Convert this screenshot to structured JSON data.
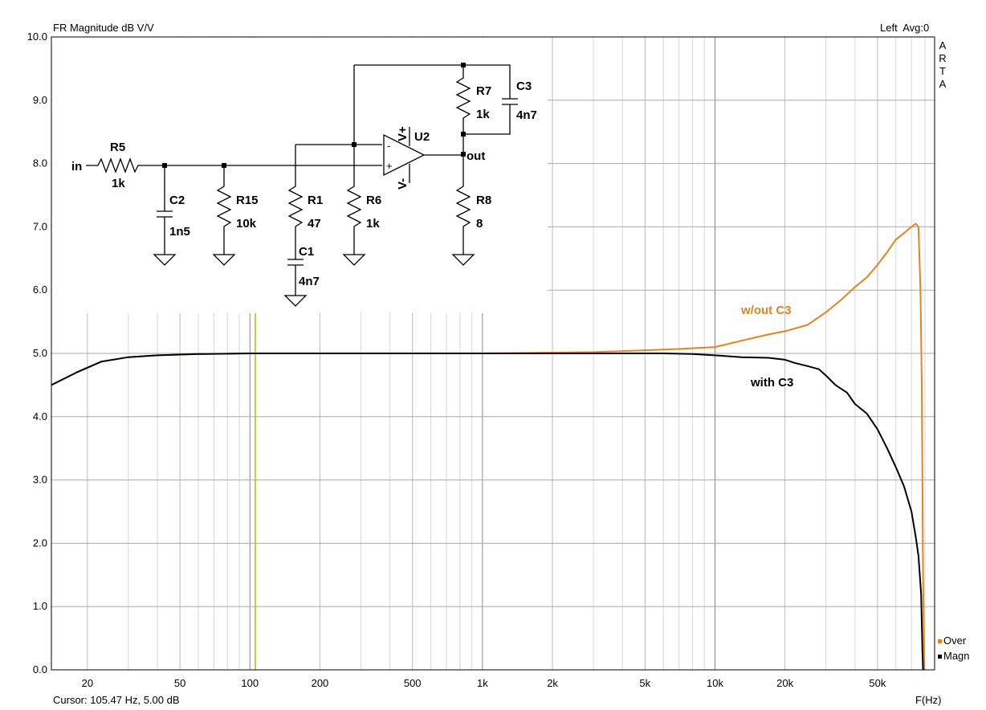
{
  "header": {
    "title": "FR Magnitude dB V/V",
    "channel_info": "Left  Avg:0",
    "side_label": [
      "A",
      "R",
      "T",
      "A"
    ],
    "cursor": "Cursor: 105.47 Hz, 5.00 dB",
    "x_unit": "F(Hz)"
  },
  "chart_data": {
    "type": "line",
    "title": "FR Magnitude dB V/V",
    "xlabel": "F(Hz)",
    "ylabel": "",
    "x_scale": "log",
    "xlim": [
      14,
      88000
    ],
    "ylim": [
      0,
      10
    ],
    "grid": true,
    "x_ticks": [
      {
        "value": 20,
        "label": "20"
      },
      {
        "value": 50,
        "label": "50"
      },
      {
        "value": 100,
        "label": "100"
      },
      {
        "value": 200,
        "label": "200"
      },
      {
        "value": 500,
        "label": "500"
      },
      {
        "value": 1000,
        "label": "1k"
      },
      {
        "value": 2000,
        "label": "2k"
      },
      {
        "value": 5000,
        "label": "5k"
      },
      {
        "value": 10000,
        "label": "10k"
      },
      {
        "value": 20000,
        "label": "20k"
      },
      {
        "value": 50000,
        "label": "50k"
      }
    ],
    "y_ticks": [
      {
        "value": 0,
        "label": "0.0"
      },
      {
        "value": 1,
        "label": "1.0"
      },
      {
        "value": 2,
        "label": "2.0"
      },
      {
        "value": 3,
        "label": "3.0"
      },
      {
        "value": 4,
        "label": "4.0"
      },
      {
        "value": 5,
        "label": "5.0"
      },
      {
        "value": 6,
        "label": "6.0"
      },
      {
        "value": 7,
        "label": "7.0"
      },
      {
        "value": 8,
        "label": "8.0"
      },
      {
        "value": 9,
        "label": "9.0"
      },
      {
        "value": 10,
        "label": "10.0"
      }
    ],
    "cursor_x": 105.47,
    "series": [
      {
        "name": "Magn",
        "annotation": "with C3",
        "color": "#000000",
        "points": [
          [
            14,
            4.5
          ],
          [
            18,
            4.7
          ],
          [
            23,
            4.87
          ],
          [
            30,
            4.94
          ],
          [
            40,
            4.97
          ],
          [
            60,
            4.99
          ],
          [
            100,
            5.0
          ],
          [
            300,
            5.0
          ],
          [
            1000,
            5.0
          ],
          [
            3000,
            5.0
          ],
          [
            6000,
            5.0
          ],
          [
            8000,
            4.99
          ],
          [
            10000,
            4.97
          ],
          [
            13000,
            4.94
          ],
          [
            17000,
            4.93
          ],
          [
            20000,
            4.9
          ],
          [
            22000,
            4.85
          ],
          [
            25000,
            4.8
          ],
          [
            28000,
            4.75
          ],
          [
            30000,
            4.65
          ],
          [
            33000,
            4.5
          ],
          [
            37000,
            4.38
          ],
          [
            40000,
            4.2
          ],
          [
            45000,
            4.05
          ],
          [
            50000,
            3.8
          ],
          [
            55000,
            3.5
          ],
          [
            60000,
            3.2
          ],
          [
            65000,
            2.9
          ],
          [
            70000,
            2.5
          ],
          [
            73000,
            2.1
          ],
          [
            75000,
            1.8
          ],
          [
            77000,
            1.2
          ],
          [
            78000,
            0.3
          ],
          [
            78500,
            0
          ]
        ]
      },
      {
        "name": "Over",
        "annotation": "w/out C3",
        "color": "#e8831c",
        "points": [
          [
            14,
            4.5
          ],
          [
            18,
            4.7
          ],
          [
            23,
            4.87
          ],
          [
            30,
            4.94
          ],
          [
            40,
            4.97
          ],
          [
            60,
            4.99
          ],
          [
            100,
            5.0
          ],
          [
            300,
            5.0
          ],
          [
            1000,
            5.0
          ],
          [
            3000,
            5.02
          ],
          [
            5000,
            5.05
          ],
          [
            7000,
            5.07
          ],
          [
            10000,
            5.1
          ],
          [
            13000,
            5.2
          ],
          [
            17000,
            5.3
          ],
          [
            20000,
            5.35
          ],
          [
            25000,
            5.45
          ],
          [
            30000,
            5.65
          ],
          [
            35000,
            5.85
          ],
          [
            40000,
            6.05
          ],
          [
            45000,
            6.2
          ],
          [
            50000,
            6.4
          ],
          [
            55000,
            6.6
          ],
          [
            60000,
            6.8
          ],
          [
            65000,
            6.9
          ],
          [
            70000,
            7.0
          ],
          [
            73000,
            7.05
          ],
          [
            75000,
            7.0
          ],
          [
            76500,
            6.0
          ],
          [
            77500,
            4.5
          ],
          [
            78500,
            1.5
          ],
          [
            79500,
            0
          ]
        ]
      }
    ]
  },
  "schematic": {
    "labels": {
      "in": "in",
      "out": "out",
      "R5": "R5",
      "R5v": "1k",
      "C2": "C2",
      "C2v": "1n5",
      "R15": "R15",
      "R15v": "10k",
      "R1": "R1",
      "R1v": "47",
      "C1": "C1",
      "C1v": "4n7",
      "R6": "R6",
      "R6v": "1k",
      "R7": "R7",
      "R7v": "1k",
      "C3": "C3",
      "C3v": "4n7",
      "R8": "R8",
      "R8v": "8",
      "U2": "U2",
      "vp": "V+",
      "vm": "V-",
      "plus": "+",
      "minus": "-"
    }
  },
  "legend": [
    {
      "label": "Over",
      "color": "#e8831c"
    },
    {
      "label": "Magn",
      "color": "#000000"
    }
  ]
}
